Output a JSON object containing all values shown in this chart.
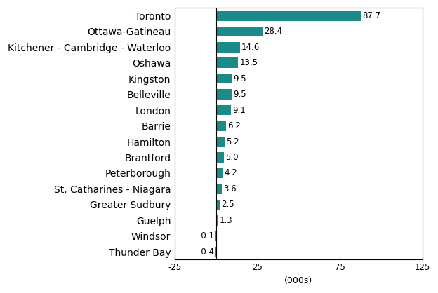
{
  "categories": [
    "Thunder Bay",
    "Windsor",
    "Guelph",
    "Greater Sudbury",
    "St. Catharines - Niagara",
    "Peterborough",
    "Brantford",
    "Hamilton",
    "Barrie",
    "London",
    "Belleville",
    "Kingston",
    "Oshawa",
    "Kitchener - Cambridge - Waterloo",
    "Ottawa-Gatineau",
    "Toronto"
  ],
  "values": [
    -0.4,
    -0.1,
    1.3,
    2.5,
    3.6,
    4.2,
    5.0,
    5.2,
    6.2,
    9.1,
    9.5,
    9.5,
    13.5,
    14.6,
    28.4,
    87.7
  ],
  "bar_color": "#1a8a8a",
  "xlabel": "(000s)",
  "xlim": [
    -25,
    125
  ],
  "xticks": [
    -25,
    25,
    75,
    125
  ],
  "xticklabels": [
    "-25",
    "25",
    "75",
    "125"
  ],
  "background_color": "#ffffff",
  "bar_height": 0.65,
  "label_fontsize": 8.5,
  "xlabel_fontsize": 9,
  "ytick_fontsize": 8.5
}
